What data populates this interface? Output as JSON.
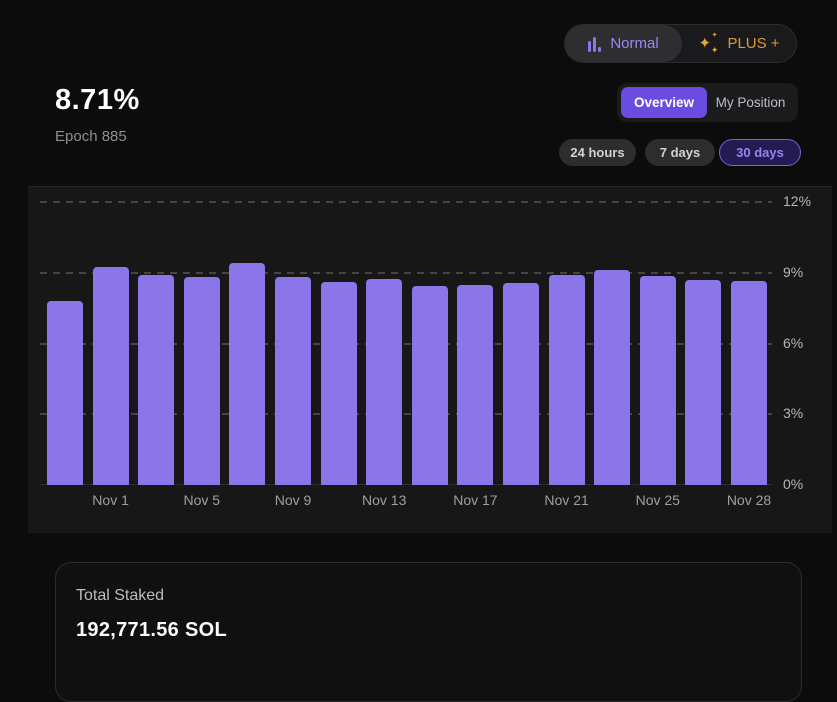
{
  "mode_toggle": {
    "normal_label": "Normal",
    "plus_label": "PLUS +",
    "selected": "Normal",
    "normal_icon": "bar-chart-icon",
    "plus_icon": "sparkles-icon"
  },
  "apy": {
    "value": "8.71%",
    "epoch": "Epoch 885"
  },
  "view_tabs": {
    "overview_label": "Overview",
    "my_position_label": "My Position",
    "selected": "Overview"
  },
  "range_buttons": {
    "h24_label": "24 hours",
    "d7_label": "7 days",
    "d30_label": "30 days",
    "selected": "30 days"
  },
  "chart_data": {
    "type": "bar",
    "title": "",
    "xlabel": "",
    "ylabel": "",
    "ylim": [
      0,
      12
    ],
    "grid": "dashed-horizontal",
    "legend": "none",
    "y_ticks": [
      {
        "value": 12,
        "label": "12%"
      },
      {
        "value": 9,
        "label": "9%"
      },
      {
        "value": 6,
        "label": "6%"
      },
      {
        "value": 3,
        "label": "3%"
      },
      {
        "value": 0,
        "label": "0%"
      }
    ],
    "values": [
      7.8,
      9.25,
      8.9,
      8.8,
      9.4,
      8.8,
      8.6,
      8.75,
      8.45,
      8.5,
      8.55,
      8.9,
      9.1,
      8.85,
      8.7,
      8.65
    ],
    "x_ticks": [
      {
        "bar_index": 1,
        "label": "Nov 1"
      },
      {
        "bar_index": 3,
        "label": "Nov 5"
      },
      {
        "bar_index": 5,
        "label": "Nov 9"
      },
      {
        "bar_index": 7,
        "label": "Nov 13"
      },
      {
        "bar_index": 9,
        "label": "Nov 17"
      },
      {
        "bar_index": 11,
        "label": "Nov 21"
      },
      {
        "bar_index": 13,
        "label": "Nov 25"
      },
      {
        "bar_index": 15,
        "label": "Nov 28"
      }
    ]
  },
  "total_staked": {
    "label": "Total Staked",
    "value": "192,771.56 SOL"
  },
  "colors": {
    "page_bg": "#0c0c0c",
    "chart_panel_bg": "#171717",
    "bar_purple": "#8c74e9",
    "accent_purple": "#6b4ce1",
    "plus_amber": "#db9b31",
    "selected_range_border": "#7565d8",
    "selected_range_text": "#9487ec"
  }
}
